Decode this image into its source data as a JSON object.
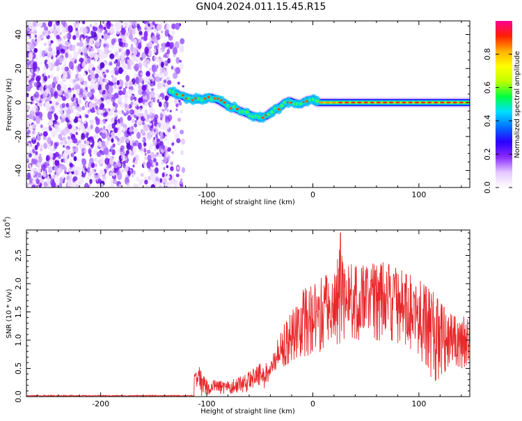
{
  "title": "GN04.2024.011.15.45.R15",
  "colors": {
    "snr_line": "#e8282a",
    "noise_point": "#7a18f0",
    "axis": "#000000"
  },
  "chart_data": [
    {
      "type": "heatmap",
      "xlabel": "Height of straight line (km)",
      "ylabel": "Frequency (Hz)",
      "xlim": [
        -270,
        148
      ],
      "ylim": [
        -50,
        48
      ],
      "xticks": [
        -200,
        -100,
        0,
        100
      ],
      "yticks": [
        -40,
        -20,
        0,
        20,
        40
      ],
      "noise_region_x": [
        -270,
        -122
      ],
      "noise_density_edge_x": -135,
      "signal_start_x": -134,
      "signal_track": {
        "x": [
          -134,
          -128,
          -120,
          -112,
          -104,
          -96,
          -88,
          -80,
          -72,
          -64,
          -56,
          -50,
          -44,
          -38,
          -32,
          -26,
          -22,
          -18,
          -12,
          -6,
          0,
          4,
          10,
          20,
          40,
          60,
          80,
          100,
          120,
          148
        ],
        "y": [
          6,
          5,
          3,
          2,
          2,
          3,
          1,
          -2,
          -4,
          -6,
          -8,
          -9,
          -8,
          -5,
          -3,
          0,
          1,
          0,
          -1,
          1,
          2,
          0,
          0,
          0,
          0,
          0,
          0,
          0,
          0,
          0
        ]
      },
      "colorbar": {
        "label": "Normalized spectral amplitude",
        "range": [
          0,
          1
        ],
        "ticks": [
          0.0,
          0.2,
          0.4,
          0.6,
          0.8
        ],
        "tick_labels": [
          "0.0",
          "0.2",
          "0.4",
          "0.6",
          "0.8"
        ],
        "colormap": [
          "#ffffff",
          "#e4c8ff",
          "#8a2bff",
          "#2a00ff",
          "#0070ff",
          "#00e0ff",
          "#00ff40",
          "#c0ff00",
          "#ffff00",
          "#ffb000",
          "#ff2000",
          "#ff0090"
        ]
      }
    },
    {
      "type": "line",
      "xlabel": "Height of straight line (km)",
      "ylabel": "SNR (10 * v/v)",
      "scale_label": "(x10",
      "scale_exp": "4",
      "scale_close": ")",
      "xlim": [
        -270,
        148
      ],
      "ylim": [
        0,
        2.95
      ],
      "xticks": [
        -200,
        -100,
        0,
        100
      ],
      "yticks": [
        0.0,
        0.5,
        1.0,
        1.5,
        2.0,
        2.5
      ],
      "ytick_labels": [
        "0.0",
        "0.5",
        "1.0",
        "1.5",
        "2.0",
        "2.5"
      ],
      "envelope": {
        "x": [
          -270,
          -120,
          -108,
          -100,
          -90,
          -80,
          -70,
          -60,
          -50,
          -40,
          -30,
          -20,
          -10,
          0,
          10,
          20,
          26,
          30,
          40,
          50,
          60,
          70,
          80,
          90,
          100,
          110,
          120,
          130,
          140,
          148
        ],
        "y": [
          0.02,
          0.03,
          0.55,
          0.3,
          0.3,
          0.3,
          0.35,
          0.45,
          0.6,
          0.6,
          1.2,
          1.55,
          1.9,
          2.0,
          2.15,
          2.2,
          2.9,
          2.35,
          2.35,
          2.4,
          2.45,
          2.35,
          2.3,
          2.25,
          2.15,
          1.95,
          1.7,
          1.5,
          1.45,
          1.4
        ]
      },
      "floor": {
        "x": [
          -270,
          -110,
          -100,
          -80,
          -60,
          -45,
          -40,
          -30,
          -20,
          -10,
          0,
          10,
          20,
          40,
          60,
          80,
          100,
          110,
          115,
          120,
          130,
          140,
          148
        ],
        "y": [
          0.0,
          0.0,
          0.02,
          0.05,
          0.08,
          0.15,
          0.35,
          0.5,
          0.6,
          0.7,
          0.75,
          0.8,
          0.9,
          1.0,
          1.0,
          0.95,
          0.7,
          0.4,
          0.2,
          0.3,
          0.6,
          0.5,
          0.55
        ]
      }
    }
  ]
}
